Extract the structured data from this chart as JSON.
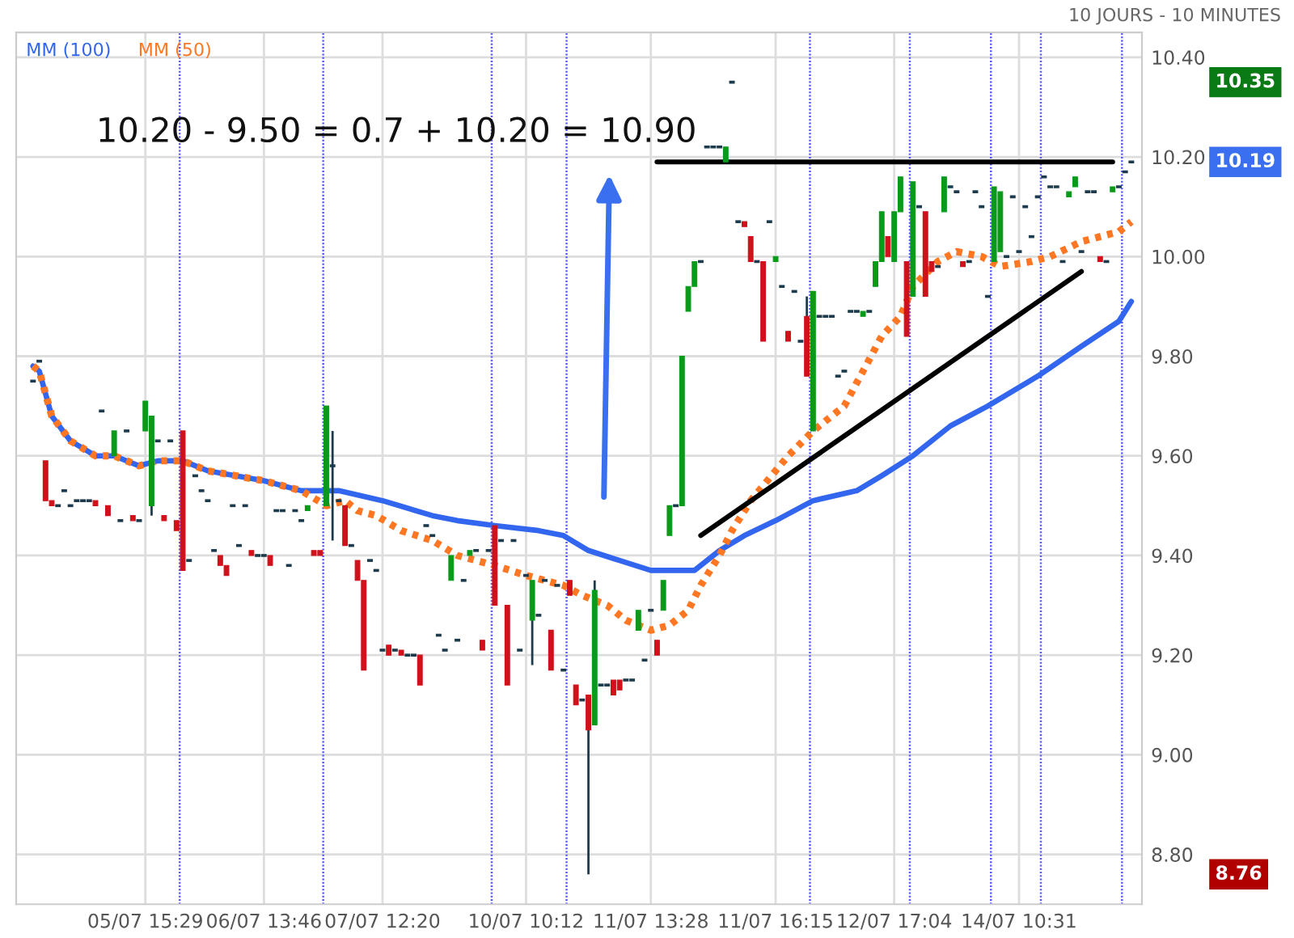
{
  "chart_data": {
    "type": "candlestick",
    "categories": [
      null,
      null,
      null,
      null,
      null,
      null,
      null,
      null,
      null,
      null,
      null,
      null,
      null,
      null,
      null,
      null,
      null,
      null,
      "05/07 15:29",
      null,
      null,
      null,
      null,
      null,
      null,
      null,
      null,
      null,
      null,
      null,
      null,
      null,
      null,
      null,
      null,
      null,
      null,
      "06/07 13:46",
      null,
      null,
      null,
      null,
      null,
      null,
      null,
      null,
      null,
      null,
      null,
      null,
      null,
      null,
      null,
      null,
      null,
      null,
      "07/07 12:20",
      null,
      null,
      null,
      null,
      null,
      null,
      null,
      null,
      null,
      null,
      null,
      null,
      null,
      null,
      null,
      null,
      null,
      null,
      null,
      null,
      null,
      null,
      "10/07 10:12",
      null,
      null,
      null,
      null,
      null,
      null,
      null,
      null,
      null,
      null,
      null,
      null,
      null,
      null,
      null,
      null,
      null,
      null,
      null,
      "11/07 13:28",
      null,
      null,
      null,
      null,
      null,
      null,
      null,
      null,
      null,
      null,
      null,
      null,
      null,
      null,
      null,
      null,
      null,
      null,
      null,
      "11/07 16:15",
      null,
      null,
      null,
      null,
      null,
      null,
      null,
      null,
      null,
      null,
      null,
      null,
      null,
      null,
      null,
      null,
      null,
      null,
      "12/07 17:04",
      null,
      null,
      null,
      null,
      null,
      null,
      null,
      null,
      null,
      null,
      null,
      null,
      null,
      null,
      null,
      null,
      null,
      null,
      null,
      "14/07 10:31",
      null,
      null,
      null,
      null,
      null,
      null,
      null,
      null,
      null,
      null,
      null,
      null,
      null,
      null,
      null,
      null,
      null,
      null
    ],
    "ohlc": [
      [
        9.75,
        9.75,
        9.75,
        9.75
      ],
      [
        9.79,
        9.79,
        9.79,
        9.79
      ],
      [
        9.59,
        9.59,
        9.51,
        9.51
      ],
      [
        9.51,
        9.51,
        9.5,
        9.5
      ],
      [
        9.5,
        9.5,
        9.5,
        9.5
      ],
      [
        9.53,
        9.53,
        9.53,
        9.53
      ],
      [
        9.5,
        9.5,
        9.5,
        9.5
      ],
      [
        9.51,
        9.51,
        9.51,
        9.51
      ],
      [
        9.51,
        9.51,
        9.51,
        9.51
      ],
      [
        9.51,
        9.51,
        9.51,
        9.51
      ],
      [
        9.51,
        9.51,
        9.5,
        9.5
      ],
      [
        9.69,
        9.69,
        9.69,
        9.69
      ],
      [
        9.5,
        9.5,
        9.48,
        9.48
      ],
      [
        9.6,
        9.65,
        9.6,
        9.65
      ],
      [
        9.47,
        9.47,
        9.47,
        9.47
      ],
      [
        9.65,
        9.65,
        9.65,
        9.65
      ],
      [
        9.48,
        9.48,
        9.47,
        9.47
      ],
      [
        9.47,
        9.47,
        9.47,
        9.47
      ],
      [
        9.65,
        9.71,
        9.65,
        9.71
      ],
      [
        9.5,
        9.68,
        9.48,
        9.68
      ],
      [
        9.63,
        9.63,
        9.63,
        9.63
      ],
      [
        9.48,
        9.48,
        9.47,
        9.47
      ],
      [
        9.63,
        9.63,
        9.63,
        9.63
      ],
      [
        9.47,
        9.47,
        9.45,
        9.45
      ],
      [
        9.65,
        9.65,
        9.37,
        9.37
      ],
      [
        9.39,
        9.39,
        9.39,
        9.39
      ],
      [
        9.56,
        9.56,
        9.56,
        9.56
      ],
      [
        9.53,
        9.53,
        9.53,
        9.53
      ],
      [
        9.51,
        9.51,
        9.51,
        9.51
      ],
      [
        9.41,
        9.41,
        9.41,
        9.41
      ],
      [
        9.4,
        9.4,
        9.38,
        9.38
      ],
      [
        9.38,
        9.38,
        9.36,
        9.36
      ],
      [
        9.5,
        9.5,
        9.5,
        9.5
      ],
      [
        9.42,
        9.42,
        9.42,
        9.42
      ],
      [
        9.5,
        9.5,
        9.5,
        9.5
      ],
      [
        9.41,
        9.41,
        9.4,
        9.4
      ],
      [
        9.4,
        9.4,
        9.4,
        9.4
      ],
      [
        9.4,
        9.4,
        9.4,
        9.4
      ],
      [
        9.4,
        9.4,
        9.38,
        9.38
      ],
      [
        9.49,
        9.49,
        9.49,
        9.49
      ],
      [
        9.49,
        9.49,
        9.49,
        9.49
      ],
      [
        9.38,
        9.38,
        9.38,
        9.38
      ],
      [
        9.49,
        9.49,
        9.49,
        9.49
      ],
      [
        9.47,
        9.47,
        9.47,
        9.47
      ],
      [
        9.49,
        9.5,
        9.49,
        9.5
      ],
      [
        9.41,
        9.41,
        9.4,
        9.4
      ],
      [
        9.41,
        9.41,
        9.4,
        9.4
      ],
      [
        9.5,
        9.7,
        9.5,
        9.7
      ],
      [
        9.58,
        9.65,
        9.43,
        9.58
      ],
      [
        9.51,
        9.51,
        9.51,
        9.51
      ],
      [
        9.5,
        9.5,
        9.42,
        9.42
      ],
      [
        9.42,
        9.42,
        9.42,
        9.42
      ],
      [
        9.39,
        9.39,
        9.35,
        9.35
      ],
      [
        9.35,
        9.35,
        9.17,
        9.17
      ],
      [
        9.39,
        9.39,
        9.39,
        9.39
      ],
      [
        9.37,
        9.37,
        9.37,
        9.37
      ],
      [
        9.21,
        9.21,
        9.21,
        9.21
      ],
      [
        9.22,
        9.22,
        9.2,
        9.2
      ],
      [
        9.21,
        9.21,
        9.21,
        9.21
      ],
      [
        9.21,
        9.21,
        9.2,
        9.2
      ],
      [
        9.2,
        9.2,
        9.2,
        9.2
      ],
      [
        9.2,
        9.2,
        9.2,
        9.2
      ],
      [
        9.2,
        9.2,
        9.14,
        9.14
      ],
      [
        9.46,
        9.46,
        9.46,
        9.46
      ],
      [
        9.44,
        9.44,
        9.44,
        9.44
      ],
      [
        9.24,
        9.24,
        9.24,
        9.24
      ],
      [
        9.21,
        9.21,
        9.21,
        9.21
      ],
      [
        9.35,
        9.4,
        9.35,
        9.4
      ],
      [
        9.23,
        9.23,
        9.23,
        9.23
      ],
      [
        9.35,
        9.35,
        9.35,
        9.35
      ],
      [
        9.4,
        9.41,
        9.4,
        9.41
      ],
      [
        9.41,
        9.41,
        9.41,
        9.41
      ],
      [
        9.23,
        9.23,
        9.21,
        9.21
      ],
      [
        9.41,
        9.41,
        9.41,
        9.41
      ],
      [
        9.46,
        9.46,
        9.3,
        9.3
      ],
      [
        9.43,
        9.43,
        9.43,
        9.43
      ],
      [
        9.3,
        9.3,
        9.14,
        9.14
      ],
      [
        9.43,
        9.43,
        9.43,
        9.43
      ],
      [
        9.21,
        9.21,
        9.21,
        9.21
      ],
      [
        9.36,
        9.36,
        9.36,
        9.36
      ],
      [
        9.27,
        9.35,
        9.18,
        9.35
      ],
      [
        9.28,
        9.28,
        9.28,
        9.28
      ],
      [
        9.35,
        9.35,
        9.35,
        9.35
      ],
      [
        9.25,
        9.25,
        9.17,
        9.17
      ],
      [
        9.34,
        9.34,
        9.34,
        9.34
      ],
      [
        9.17,
        9.17,
        9.17,
        9.17
      ],
      [
        9.35,
        9.35,
        9.32,
        9.32
      ],
      [
        9.14,
        9.14,
        9.1,
        9.1
      ],
      [
        9.11,
        9.11,
        9.11,
        9.11
      ],
      [
        9.12,
        9.12,
        8.76,
        9.05
      ],
      [
        9.06,
        9.35,
        9.06,
        9.33
      ],
      [
        9.14,
        9.14,
        9.14,
        9.14
      ],
      [
        9.14,
        9.14,
        9.14,
        9.14
      ],
      [
        9.15,
        9.15,
        9.12,
        9.12
      ],
      [
        9.15,
        9.15,
        9.13,
        9.13
      ],
      [
        9.15,
        9.15,
        9.15,
        9.15
      ],
      [
        9.15,
        9.15,
        9.15,
        9.15
      ],
      [
        9.25,
        9.29,
        9.25,
        9.29
      ],
      [
        9.19,
        9.19,
        9.19,
        9.19
      ],
      [
        9.29,
        9.29,
        9.29,
        9.29
      ],
      [
        9.23,
        9.23,
        9.2,
        9.2
      ],
      [
        9.29,
        9.35,
        9.29,
        9.35
      ],
      [
        9.44,
        9.5,
        9.44,
        9.5
      ],
      [
        9.5,
        9.5,
        9.5,
        9.5
      ],
      [
        9.5,
        9.8,
        9.5,
        9.8
      ],
      [
        9.89,
        9.94,
        9.89,
        9.94
      ],
      [
        9.94,
        9.99,
        9.94,
        9.99
      ],
      [
        9.99,
        9.99,
        9.99,
        9.99
      ],
      [
        10.22,
        10.22,
        10.22,
        10.22
      ],
      [
        10.22,
        10.22,
        10.22,
        10.22
      ],
      [
        10.22,
        10.22,
        10.22,
        10.22
      ],
      [
        10.19,
        10.22,
        10.19,
        10.22
      ],
      [
        10.35,
        10.35,
        10.35,
        10.35
      ],
      [
        10.07,
        10.07,
        10.07,
        10.07
      ],
      [
        10.07,
        10.07,
        10.06,
        10.06
      ],
      [
        10.04,
        10.04,
        9.99,
        9.99
      ],
      [
        9.99,
        9.99,
        9.99,
        9.99
      ],
      [
        9.99,
        9.99,
        9.83,
        9.83
      ],
      [
        10.07,
        10.07,
        10.07,
        10.07
      ],
      [
        9.99,
        10.0,
        9.99,
        10.0
      ],
      [
        9.94,
        9.94,
        9.94,
        9.94
      ],
      [
        9.85,
        9.85,
        9.83,
        9.83
      ],
      [
        9.93,
        9.93,
        9.93,
        9.93
      ],
      [
        9.83,
        9.83,
        9.83,
        9.83
      ],
      [
        9.88,
        9.92,
        9.76,
        9.76
      ],
      [
        9.65,
        9.93,
        9.65,
        9.93
      ],
      [
        9.88,
        9.88,
        9.88,
        9.88
      ],
      [
        9.88,
        9.88,
        9.88,
        9.88
      ],
      [
        9.88,
        9.88,
        9.88,
        9.88
      ],
      [
        9.76,
        9.76,
        9.76,
        9.76
      ],
      [
        9.77,
        9.77,
        9.77,
        9.77
      ],
      [
        9.89,
        9.89,
        9.89,
        9.89
      ],
      [
        9.89,
        9.89,
        9.89,
        9.89
      ],
      [
        9.88,
        9.89,
        9.88,
        9.89
      ],
      [
        9.89,
        9.89,
        9.89,
        9.89
      ],
      [
        9.94,
        9.99,
        9.94,
        9.99
      ],
      [
        9.99,
        10.09,
        9.99,
        10.09
      ],
      [
        10.04,
        10.04,
        10.0,
        10.0
      ],
      [
        9.99,
        10.09,
        9.99,
        10.09
      ],
      [
        10.09,
        10.16,
        10.09,
        10.16
      ],
      [
        9.99,
        9.99,
        9.84,
        9.84
      ],
      [
        9.92,
        10.15,
        9.92,
        10.15
      ],
      [
        10.1,
        10.1,
        10.1,
        10.1
      ],
      [
        10.09,
        10.09,
        9.92,
        9.92
      ],
      [
        9.99,
        9.99,
        9.97,
        9.97
      ],
      [
        9.98,
        9.98,
        9.98,
        9.98
      ],
      [
        10.09,
        10.16,
        10.09,
        10.16
      ],
      [
        10.14,
        10.14,
        10.14,
        10.14
      ],
      [
        10.13,
        10.13,
        10.13,
        10.13
      ],
      [
        9.99,
        9.99,
        9.98,
        9.98
      ],
      [
        9.99,
        9.99,
        9.99,
        9.99
      ],
      [
        10.13,
        10.13,
        10.13,
        10.13
      ],
      [
        10.1,
        10.1,
        10.1,
        10.1
      ],
      [
        9.92,
        9.92,
        9.92,
        9.92
      ],
      [
        9.99,
        10.14,
        9.99,
        10.14
      ],
      [
        10.01,
        10.13,
        10.01,
        10.13
      ],
      [
        10.0,
        10.0,
        10.0,
        10.0
      ],
      [
        10.12,
        10.12,
        10.12,
        10.12
      ],
      [
        10.01,
        10.01,
        10.01,
        10.01
      ],
      [
        10.1,
        10.1,
        10.1,
        10.1
      ],
      [
        10.04,
        10.04,
        10.04,
        10.04
      ],
      [
        10.12,
        10.12,
        10.12,
        10.12
      ],
      [
        10.16,
        10.16,
        10.16,
        10.16
      ],
      [
        10.14,
        10.14,
        10.14,
        10.14
      ],
      [
        10.14,
        10.14,
        10.14,
        10.14
      ],
      [
        9.99,
        9.99,
        9.99,
        9.99
      ],
      [
        10.12,
        10.13,
        10.12,
        10.13
      ],
      [
        10.14,
        10.16,
        10.14,
        10.16
      ],
      [
        10.01,
        10.01,
        10.01,
        10.01
      ],
      [
        10.13,
        10.13,
        10.13,
        10.13
      ],
      [
        10.13,
        10.13,
        10.13,
        10.13
      ],
      [
        10.0,
        10.0,
        9.99,
        9.99
      ],
      [
        9.99,
        9.99,
        9.99,
        9.99
      ],
      [
        10.13,
        10.14,
        10.13,
        10.14
      ],
      [
        10.14,
        10.14,
        10.14,
        10.14
      ],
      [
        10.17,
        10.17,
        10.17,
        10.17
      ],
      [
        10.19,
        10.19,
        10.19,
        10.19
      ]
    ],
    "series": [
      {
        "name": "MM (100)",
        "type": "line",
        "color": "#3366ee",
        "line_style": "solid",
        "values": [
          9.78,
          9.77,
          null,
          9.68,
          null,
          null,
          9.63,
          null,
          null,
          null,
          9.6,
          null,
          null,
          9.6,
          null,
          null,
          null,
          9.58,
          null,
          null,
          9.59,
          null,
          null,
          null,
          9.59,
          null,
          null,
          null,
          9.57,
          null,
          null,
          null,
          null,
          null,
          null,
          null,
          null,
          9.55,
          null,
          null,
          null,
          null,
          null,
          9.53,
          null,
          null,
          null,
          9.53,
          null,
          9.53,
          null,
          null,
          null,
          null,
          null,
          null,
          9.51,
          null,
          null,
          null,
          null,
          null,
          null,
          null,
          9.48,
          null,
          null,
          null,
          9.47,
          null,
          null,
          null,
          null,
          null,
          9.46,
          null,
          null,
          null,
          null,
          null,
          null,
          9.45,
          null,
          null,
          null,
          9.44,
          null,
          null,
          null,
          9.41,
          null,
          null,
          null,
          null,
          9.39,
          null,
          null,
          null,
          null,
          9.37,
          null,
          null,
          null,
          9.37,
          null,
          null,
          9.37,
          null,
          null,
          null,
          9.41,
          null,
          null,
          null,
          9.44,
          null,
          null,
          null,
          null,
          9.47,
          null,
          null,
          null,
          null,
          null,
          9.51,
          null,
          null,
          null,
          null,
          null,
          null,
          9.53,
          null,
          null,
          null,
          9.56,
          null,
          null,
          null,
          null,
          9.6,
          null,
          null,
          null,
          null,
          null,
          9.66,
          null,
          null,
          null,
          null,
          null,
          9.7,
          null,
          null,
          null,
          null,
          null,
          null,
          null,
          9.76,
          null,
          null,
          null,
          null,
          null,
          null,
          9.82,
          null,
          null,
          null,
          null,
          null,
          9.87,
          null,
          9.91
        ]
      },
      {
        "name": "MM (50)",
        "type": "line",
        "color": "#ff7722",
        "line_style": "dotted",
        "values": [
          9.78,
          9.77,
          null,
          9.68,
          null,
          null,
          9.63,
          null,
          null,
          null,
          9.6,
          null,
          null,
          9.6,
          null,
          null,
          null,
          9.58,
          null,
          null,
          9.59,
          null,
          null,
          null,
          9.59,
          null,
          null,
          null,
          9.57,
          null,
          null,
          null,
          null,
          null,
          null,
          null,
          null,
          9.55,
          null,
          null,
          null,
          null,
          null,
          9.53,
          null,
          null,
          null,
          9.5,
          null,
          null,
          9.51,
          null,
          9.49,
          null,
          null,
          9.48,
          null,
          null,
          null,
          9.45,
          null,
          null,
          null,
          null,
          9.43,
          null,
          null,
          null,
          9.4,
          null,
          null,
          null,
          null,
          null,
          9.38,
          null,
          null,
          null,
          null,
          9.36,
          null,
          null,
          null,
          null,
          null,
          9.34,
          null,
          null,
          9.32,
          null,
          null,
          null,
          9.3,
          null,
          null,
          9.27,
          null,
          null,
          null,
          9.25,
          null,
          null,
          9.26,
          null,
          null,
          9.29,
          null,
          9.34,
          null,
          null,
          9.4,
          null,
          9.45,
          null,
          null,
          9.51,
          null,
          null,
          null,
          9.57,
          null,
          9.6,
          null,
          null,
          null,
          9.65,
          null,
          null,
          null,
          null,
          9.7,
          null,
          null,
          9.77,
          null,
          null,
          9.84,
          null,
          null,
          9.88,
          null,
          9.94,
          null,
          null,
          null,
          9.99,
          null,
          null,
          10.01,
          null,
          null,
          null,
          10.0,
          null,
          null,
          9.98,
          null,
          null,
          null,
          null,
          9.99,
          null,
          null,
          10.0,
          null,
          null,
          null,
          null,
          10.03,
          null,
          null,
          null,
          null,
          null,
          10.05,
          null,
          10.07
        ]
      },
      {
        "type": "line",
        "color": "#000000",
        "line_style": "solid",
        "values": [
          null,
          null,
          null,
          null,
          null,
          null,
          null,
          null,
          null,
          null,
          null,
          null,
          null,
          null,
          null,
          null,
          null,
          null,
          null,
          null,
          null,
          null,
          null,
          null,
          null,
          null,
          null,
          null,
          null,
          null,
          null,
          null,
          null,
          null,
          null,
          null,
          null,
          null,
          null,
          null,
          null,
          null,
          null,
          null,
          null,
          null,
          null,
          null,
          null,
          null,
          null,
          null,
          null,
          null,
          null,
          null,
          null,
          null,
          null,
          null,
          null,
          null,
          null,
          null,
          null,
          null,
          null,
          null,
          null,
          null,
          null,
          null,
          null,
          null,
          null,
          null,
          null,
          null,
          null,
          null,
          null,
          null,
          null,
          null,
          null,
          null,
          null,
          null,
          null,
          null,
          null,
          null,
          null,
          null,
          null,
          null,
          null,
          null,
          null,
          null,
          10.19,
          null,
          null,
          null,
          null,
          null,
          null,
          null,
          null,
          null,
          null,
          null,
          null,
          null,
          null,
          null,
          null,
          null,
          null,
          null,
          null,
          null,
          null,
          null,
          null,
          null,
          null,
          null,
          null,
          null,
          null,
          null,
          null,
          null,
          null,
          null,
          null,
          null,
          null,
          null,
          null,
          null,
          null,
          null,
          null,
          null,
          null,
          null,
          null,
          null,
          null,
          null,
          null,
          null,
          null,
          null,
          null,
          null,
          null,
          null,
          null,
          null,
          null,
          null,
          null,
          null,
          null,
          null,
          null,
          null,
          null,
          null,
          null,
          10.19,
          null,
          null,
          null
        ]
      },
      {
        "type": "line",
        "color": "#000000",
        "line_style": "solid",
        "values": [
          null,
          null,
          null,
          null,
          null,
          null,
          null,
          null,
          null,
          null,
          null,
          null,
          null,
          null,
          null,
          null,
          null,
          null,
          null,
          null,
          null,
          null,
          null,
          null,
          null,
          null,
          null,
          null,
          null,
          null,
          null,
          null,
          null,
          null,
          null,
          null,
          null,
          null,
          null,
          null,
          null,
          null,
          null,
          null,
          null,
          null,
          null,
          null,
          null,
          null,
          null,
          null,
          null,
          null,
          null,
          null,
          null,
          null,
          null,
          null,
          null,
          null,
          null,
          null,
          null,
          null,
          null,
          null,
          null,
          null,
          null,
          null,
          null,
          null,
          null,
          null,
          null,
          null,
          null,
          null,
          null,
          null,
          null,
          null,
          null,
          null,
          null,
          null,
          null,
          null,
          null,
          null,
          null,
          null,
          null,
          null,
          null,
          null,
          null,
          null,
          null,
          null,
          null,
          null,
          null,
          null,
          null,
          9.44,
          null,
          null,
          null,
          null,
          null,
          null,
          null,
          null,
          null,
          null,
          null,
          null,
          null,
          null,
          null,
          null,
          null,
          null,
          null,
          null,
          null,
          null,
          null,
          null,
          null,
          null,
          null,
          null,
          null,
          null,
          null,
          null,
          null,
          null,
          null,
          null,
          null,
          null,
          null,
          null,
          null,
          null,
          null,
          null,
          null,
          null,
          null,
          null,
          null,
          null,
          null,
          null,
          null,
          null,
          null,
          null,
          null,
          null,
          null,
          null,
          9.97,
          null,
          null,
          null,
          null,
          null,
          null,
          null,
          null
        ]
      }
    ],
    "ylim": [
      8.7,
      10.45
    ],
    "yticks": [
      {
        "value": 8.8,
        "label": "8.80"
      },
      {
        "value": 9.0,
        "label": "9.00"
      },
      {
        "value": 9.2,
        "label": "9.20"
      },
      {
        "value": 9.4,
        "label": "9.40"
      },
      {
        "value": 9.6,
        "label": "9.60"
      },
      {
        "value": 9.8,
        "label": "9.80"
      },
      {
        "value": 10.0,
        "label": "10.00"
      },
      {
        "value": 10.2,
        "label": "10.20"
      },
      {
        "value": 10.4,
        "label": "10.40"
      }
    ],
    "annotations": [
      "10 JOURS - 10 MINUTES",
      "10.20 - 9.50 = 0.7 + 10.20 = 10.90",
      "10.35",
      "10.19",
      "8.76"
    ],
    "grid": true,
    "legend": "top left"
  }
}
